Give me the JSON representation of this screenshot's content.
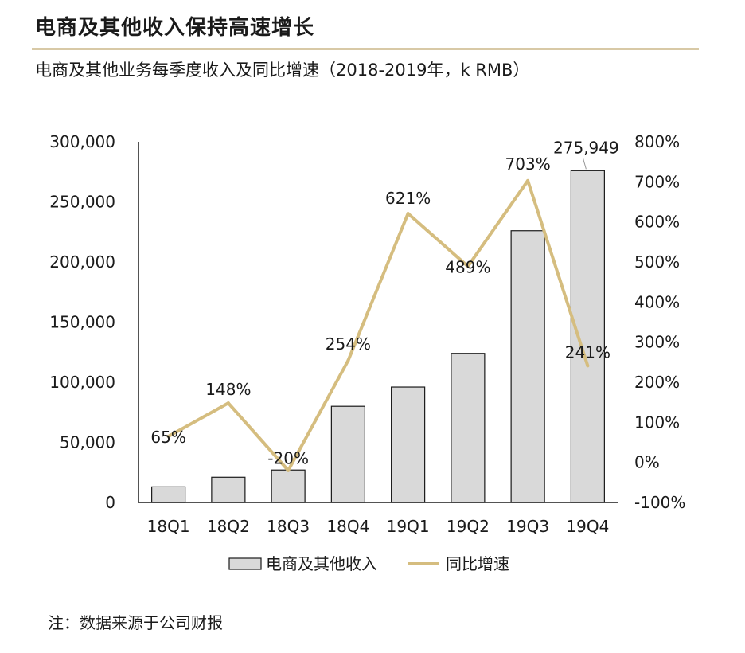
{
  "page": {
    "title": "电商及其他收入保持高速增长",
    "subtitle": "电商及其他业务每季度收入及同比增速（2018-2019年，k RMB）",
    "note": "注：数据来源于公司财报"
  },
  "colors": {
    "bar_fill": "#d9d9d9",
    "bar_stroke": "#1a1a1a",
    "line": "#d5bd7f",
    "rule": "#d8c9a6"
  },
  "chart_data": {
    "type": "bar",
    "categories": [
      "18Q1",
      "18Q2",
      "18Q3",
      "18Q4",
      "19Q1",
      "19Q2",
      "19Q3",
      "19Q4"
    ],
    "series": [
      {
        "name": "电商及其他收入",
        "type": "bar",
        "axis": "left",
        "values": [
          13000,
          21000,
          27000,
          80000,
          96000,
          124000,
          226000,
          275949
        ]
      },
      {
        "name": "同比增速",
        "type": "line",
        "axis": "right",
        "values": [
          65,
          148,
          -20,
          254,
          621,
          489,
          703,
          241
        ]
      }
    ],
    "data_labels": {
      "bar": [
        null,
        null,
        null,
        null,
        null,
        null,
        null,
        "275,949"
      ],
      "line": [
        "65%",
        "148%",
        "-20%",
        "254%",
        "621%",
        "489%",
        "703%",
        "241%"
      ]
    },
    "y_left": {
      "ylim": [
        0,
        300000
      ],
      "ticks": [
        0,
        50000,
        100000,
        150000,
        200000,
        250000,
        300000
      ],
      "tick_labels": [
        "0",
        "50,000",
        "100,000",
        "150,000",
        "200,000",
        "250,000",
        "300,000"
      ]
    },
    "y_right": {
      "ylim": [
        -100,
        800
      ],
      "ticks": [
        -100,
        0,
        100,
        200,
        300,
        400,
        500,
        600,
        700,
        800
      ],
      "tick_labels": [
        "-100%",
        "0%",
        "100%",
        "200%",
        "300%",
        "400%",
        "500%",
        "600%",
        "700%",
        "800%"
      ]
    },
    "grid": false,
    "legend": {
      "position": "bottom",
      "items": [
        "电商及其他收入",
        "同比增速"
      ]
    }
  }
}
